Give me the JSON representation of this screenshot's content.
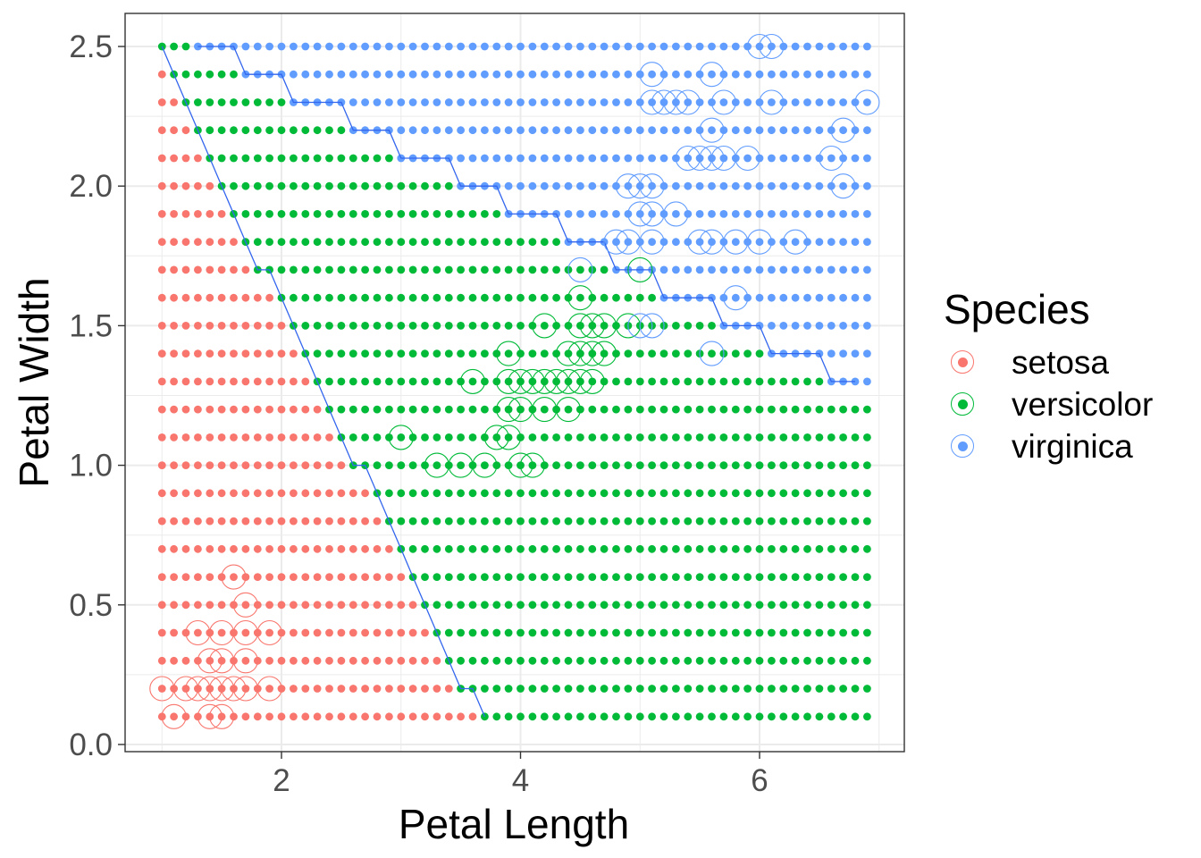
{
  "chart_data": {
    "type": "scatter",
    "title": "",
    "xlabel": "Petal Length",
    "ylabel": "Petal Width",
    "xlim": [
      0.7,
      7.2
    ],
    "ylim": [
      -0.02,
      2.62
    ],
    "x_ticks": [
      2,
      4,
      6
    ],
    "x_tick_labels": [
      "2",
      "4",
      "6"
    ],
    "y_ticks": [
      0.0,
      0.5,
      1.0,
      1.5,
      2.0,
      2.5
    ],
    "y_tick_labels": [
      "0.0",
      "0.5",
      "1.0",
      "1.5",
      "2.0",
      "2.5"
    ],
    "grid": true,
    "legend": {
      "title": "Species",
      "position": "right",
      "entries": [
        "setosa",
        "versicolor",
        "virginica"
      ]
    },
    "colors": {
      "setosa": "#F8766D",
      "versicolor": "#00BA38",
      "virginica": "#619CFF",
      "boundary": "#3366EE"
    },
    "prediction_grid": {
      "description": "Filled dots: predicted class on a grid of Petal Length 1.0-6.9 (step 0.1) x Petal Width 0.1-2.5 (step 0.1). For each row, x < versicolor_from is setosa, versicolor_from <= x < virginica_from is versicolor, x >= virginica_from is virginica.",
      "x_start": 1.0,
      "x_end": 6.9,
      "x_step": 0.1,
      "rows": [
        {
          "y": 2.5,
          "versicolor_from": 1.0,
          "virginica_from": 1.3
        },
        {
          "y": 2.4,
          "versicolor_from": 1.1,
          "virginica_from": 1.7
        },
        {
          "y": 2.3,
          "versicolor_from": 1.2,
          "virginica_from": 2.1
        },
        {
          "y": 2.2,
          "versicolor_from": 1.3,
          "virginica_from": 2.6
        },
        {
          "y": 2.1,
          "versicolor_from": 1.4,
          "virginica_from": 3.0
        },
        {
          "y": 2.0,
          "versicolor_from": 1.5,
          "virginica_from": 3.5
        },
        {
          "y": 1.9,
          "versicolor_from": 1.6,
          "virginica_from": 3.9
        },
        {
          "y": 1.8,
          "versicolor_from": 1.7,
          "virginica_from": 4.4
        },
        {
          "y": 1.7,
          "versicolor_from": 1.8,
          "virginica_from": 4.8
        },
        {
          "y": 1.6,
          "versicolor_from": 2.0,
          "virginica_from": 5.2
        },
        {
          "y": 1.5,
          "versicolor_from": 2.1,
          "virginica_from": 5.7
        },
        {
          "y": 1.4,
          "versicolor_from": 2.2,
          "virginica_from": 6.1
        },
        {
          "y": 1.3,
          "versicolor_from": 2.3,
          "virginica_from": 6.6
        },
        {
          "y": 1.2,
          "versicolor_from": 2.4,
          "virginica_from": 7.0
        },
        {
          "y": 1.1,
          "versicolor_from": 2.5,
          "virginica_from": 7.0
        },
        {
          "y": 1.0,
          "versicolor_from": 2.6,
          "virginica_from": 7.0
        },
        {
          "y": 0.9,
          "versicolor_from": 2.8,
          "virginica_from": 7.0
        },
        {
          "y": 0.8,
          "versicolor_from": 2.9,
          "virginica_from": 7.0
        },
        {
          "y": 0.7,
          "versicolor_from": 3.0,
          "virginica_from": 7.0
        },
        {
          "y": 0.6,
          "versicolor_from": 3.1,
          "virginica_from": 7.0
        },
        {
          "y": 0.5,
          "versicolor_from": 3.2,
          "virginica_from": 7.0
        },
        {
          "y": 0.4,
          "versicolor_from": 3.3,
          "virginica_from": 7.0
        },
        {
          "y": 0.3,
          "versicolor_from": 3.4,
          "virginica_from": 7.0
        },
        {
          "y": 0.2,
          "versicolor_from": 3.5,
          "virginica_from": 7.0
        },
        {
          "y": 0.1,
          "versicolor_from": 3.7,
          "virginica_from": 7.0
        }
      ]
    },
    "observations": {
      "description": "Open circles: observed iris samples (Petal Length, Petal Width) by species",
      "setosa": [
        [
          1.1,
          0.1
        ],
        [
          1.4,
          0.1
        ],
        [
          1.5,
          0.1
        ],
        [
          1.0,
          0.2
        ],
        [
          1.2,
          0.2
        ],
        [
          1.3,
          0.2
        ],
        [
          1.4,
          0.2
        ],
        [
          1.5,
          0.2
        ],
        [
          1.6,
          0.2
        ],
        [
          1.7,
          0.2
        ],
        [
          1.9,
          0.2
        ],
        [
          1.4,
          0.3
        ],
        [
          1.5,
          0.3
        ],
        [
          1.7,
          0.3
        ],
        [
          1.3,
          0.4
        ],
        [
          1.5,
          0.4
        ],
        [
          1.7,
          0.4
        ],
        [
          1.9,
          0.4
        ],
        [
          1.7,
          0.5
        ],
        [
          1.6,
          0.6
        ]
      ],
      "versicolor": [
        [
          3.3,
          1.0
        ],
        [
          3.5,
          1.0
        ],
        [
          3.7,
          1.0
        ],
        [
          4.0,
          1.0
        ],
        [
          4.1,
          1.0
        ],
        [
          3.0,
          1.1
        ],
        [
          3.8,
          1.1
        ],
        [
          3.9,
          1.1
        ],
        [
          3.9,
          1.2
        ],
        [
          4.0,
          1.2
        ],
        [
          4.2,
          1.2
        ],
        [
          4.4,
          1.2
        ],
        [
          3.6,
          1.3
        ],
        [
          3.9,
          1.3
        ],
        [
          4.0,
          1.3
        ],
        [
          4.1,
          1.3
        ],
        [
          4.2,
          1.3
        ],
        [
          4.3,
          1.3
        ],
        [
          4.4,
          1.3
        ],
        [
          4.5,
          1.3
        ],
        [
          4.6,
          1.3
        ],
        [
          3.9,
          1.4
        ],
        [
          4.4,
          1.4
        ],
        [
          4.5,
          1.4
        ],
        [
          4.6,
          1.4
        ],
        [
          4.7,
          1.4
        ],
        [
          4.2,
          1.5
        ],
        [
          4.5,
          1.5
        ],
        [
          4.6,
          1.5
        ],
        [
          4.7,
          1.5
        ],
        [
          4.9,
          1.5
        ],
        [
          4.5,
          1.6
        ],
        [
          5.0,
          1.7
        ]
      ],
      "virginica": [
        [
          5.6,
          1.4
        ],
        [
          5.0,
          1.5
        ],
        [
          5.1,
          1.5
        ],
        [
          5.8,
          1.6
        ],
        [
          4.5,
          1.7
        ],
        [
          4.8,
          1.8
        ],
        [
          4.9,
          1.8
        ],
        [
          5.1,
          1.8
        ],
        [
          5.5,
          1.8
        ],
        [
          5.6,
          1.8
        ],
        [
          5.8,
          1.8
        ],
        [
          6.0,
          1.8
        ],
        [
          6.3,
          1.8
        ],
        [
          5.0,
          1.9
        ],
        [
          5.1,
          1.9
        ],
        [
          5.3,
          1.9
        ],
        [
          4.9,
          2.0
        ],
        [
          5.0,
          2.0
        ],
        [
          5.1,
          2.0
        ],
        [
          6.7,
          2.0
        ],
        [
          5.4,
          2.1
        ],
        [
          5.5,
          2.1
        ],
        [
          5.6,
          2.1
        ],
        [
          5.7,
          2.1
        ],
        [
          5.9,
          2.1
        ],
        [
          6.6,
          2.1
        ],
        [
          5.6,
          2.2
        ],
        [
          6.7,
          2.2
        ],
        [
          5.1,
          2.3
        ],
        [
          5.2,
          2.3
        ],
        [
          5.3,
          2.3
        ],
        [
          5.4,
          2.3
        ],
        [
          5.7,
          2.3
        ],
        [
          6.1,
          2.3
        ],
        [
          6.9,
          2.3
        ],
        [
          5.1,
          2.4
        ],
        [
          5.6,
          2.4
        ],
        [
          6.0,
          2.5
        ],
        [
          6.1,
          2.5
        ]
      ]
    }
  },
  "legend": {
    "title": "Species",
    "items": [
      {
        "label": "setosa",
        "color": "#F8766D"
      },
      {
        "label": "versicolor",
        "color": "#00BA38"
      },
      {
        "label": "virginica",
        "color": "#619CFF"
      }
    ]
  }
}
